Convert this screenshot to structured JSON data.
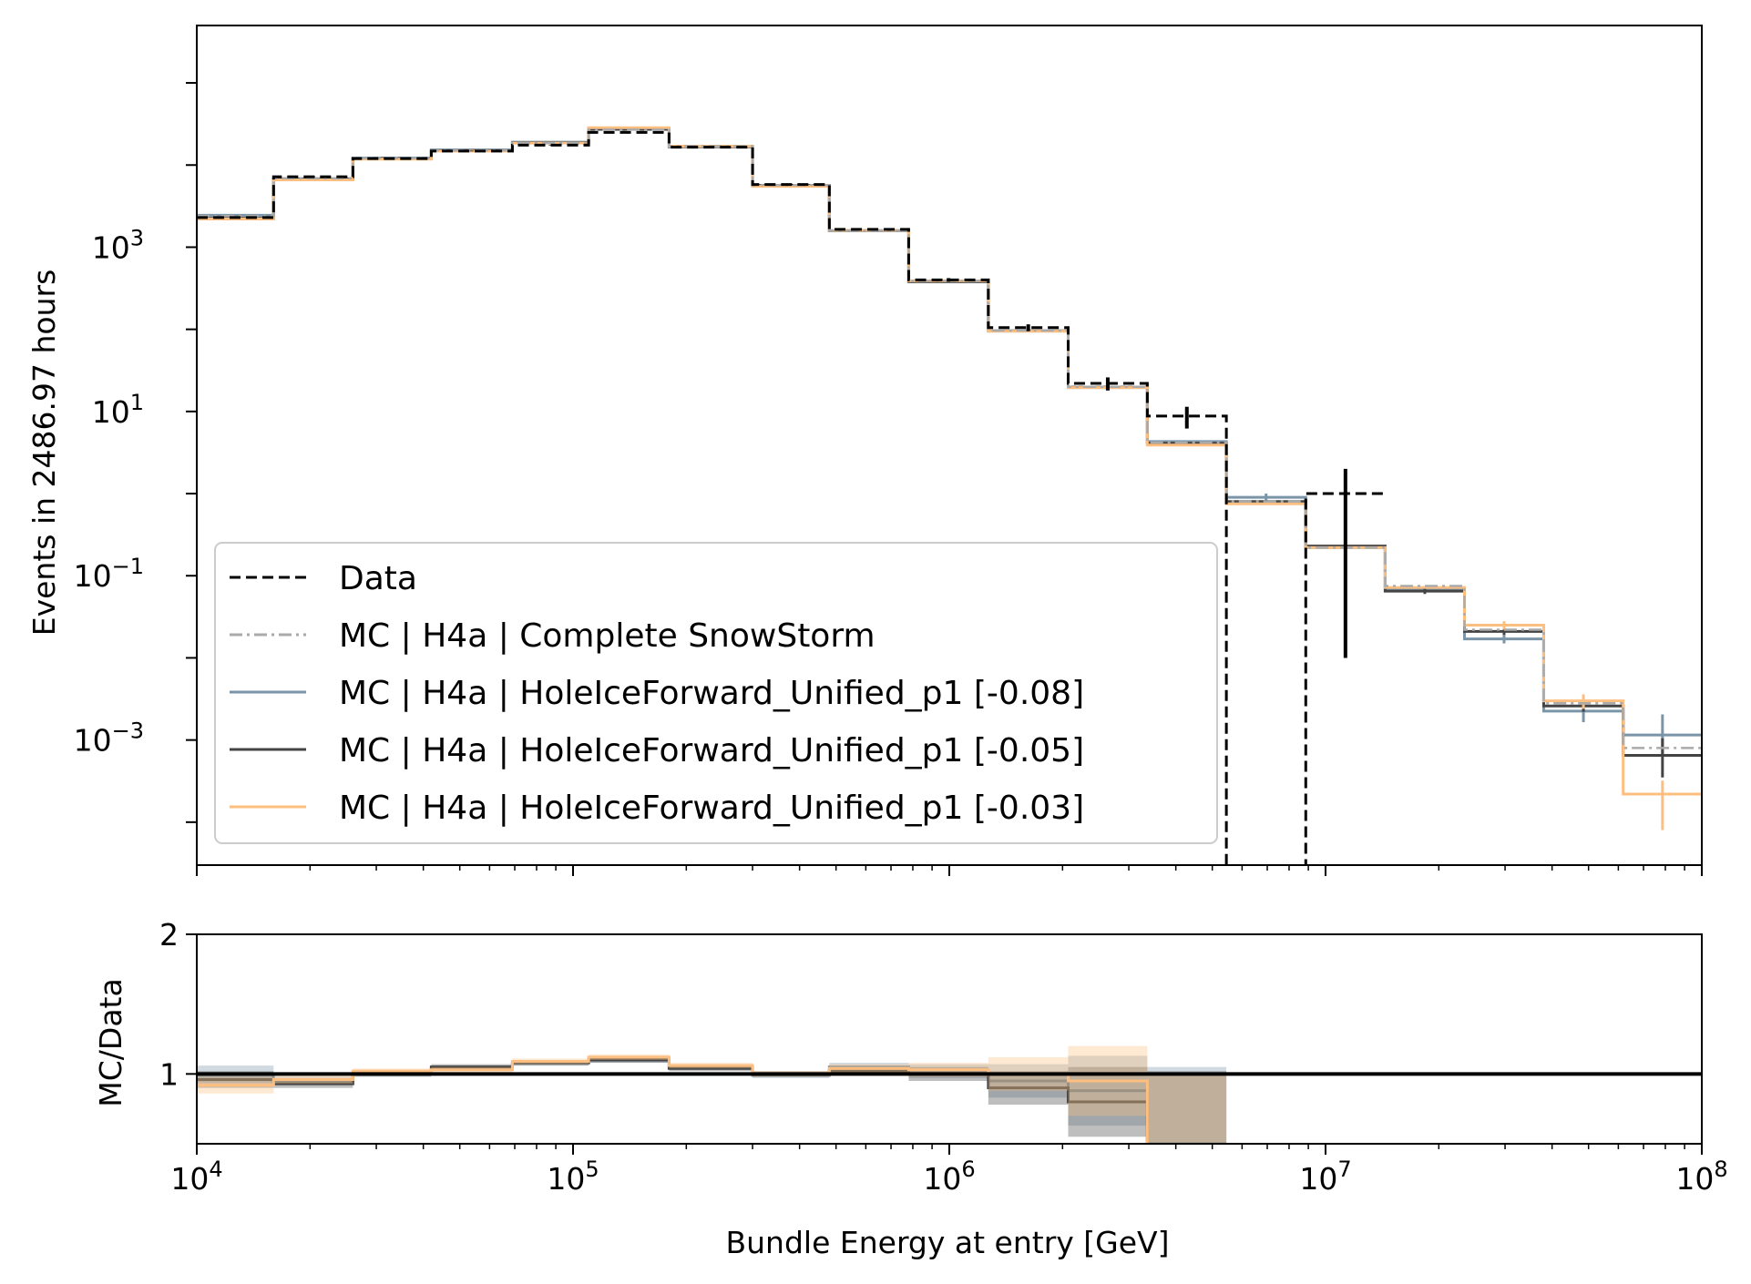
{
  "chart_data": [
    {
      "type": "line",
      "panel": "main",
      "xlabel": "",
      "ylabel": "Events in 2486.97 hours",
      "xscale": "log",
      "yscale": "log",
      "xlim": [
        10000,
        100000000
      ],
      "ylim": [
        3e-05,
        500000
      ],
      "y_ticks": [
        {
          "base": "10",
          "exp": "3",
          "value": 1000
        },
        {
          "base": "10",
          "exp": "1",
          "value": 10
        },
        {
          "base": "10",
          "exp": "−1",
          "value": 0.1
        },
        {
          "base": "10",
          "exp": "−3",
          "value": 0.001
        }
      ],
      "bin_edges": [
        10000,
        16000,
        26000,
        42000,
        69000,
        110000,
        180000,
        300000,
        480000,
        780000,
        1270000,
        2070000,
        3360000,
        5450000,
        8860000,
        14400000,
        23400000,
        38000000,
        61800000,
        100000000
      ],
      "legend_position": "lower-left",
      "series": [
        {
          "name": "Data",
          "color": "#000000",
          "style": "dashed",
          "values": [
            2300,
            7200,
            12000,
            14800,
            17500,
            25000,
            16500,
            5800,
            1650,
            400,
            105,
            22,
            8.8,
            1e-05,
            1.0
          ],
          "errors_lo": [
            60,
            90,
            110,
            120,
            130,
            160,
            130,
            80,
            40,
            20,
            10,
            4,
            2.6,
            0,
            0.99
          ],
          "errors_hi": [
            60,
            90,
            110,
            120,
            130,
            160,
            130,
            80,
            40,
            20,
            10,
            4,
            2.6,
            0,
            1.0
          ]
        },
        {
          "name": "MC | H4a | Complete SnowStorm",
          "color": "#aaaaaa",
          "style": "dashdot",
          "values": [
            2400,
            6900,
            12100,
            15100,
            18500,
            27000,
            17000,
            5700,
            1600,
            390,
            97,
            20,
            4.2,
            0.8,
            0.22,
            0.075,
            0.022,
            0.0028,
            0.0008
          ],
          "errors_lo": [],
          "errors_hi": []
        },
        {
          "name": "MC | H4a | HoleIceForward_Unified_p1 [-0.08]",
          "color": "#7a94a8",
          "style": "solid",
          "values": [
            2450,
            6800,
            12200,
            15300,
            19000,
            27500,
            16800,
            5600,
            1580,
            385,
            95,
            19.5,
            4.3,
            0.9,
            0.22,
            0.068,
            0.017,
            0.00225,
            0.00115
          ],
          "errors_lo": [
            0,
            0,
            0,
            0,
            0,
            0,
            0,
            0,
            0,
            0,
            0,
            0,
            0,
            0.1,
            0,
            0,
            0.002,
            0.0006,
            0.0005
          ],
          "errors_hi": [
            0,
            0,
            0,
            0,
            0,
            0,
            0,
            0,
            0,
            0,
            0,
            0,
            0,
            0.1,
            0,
            0,
            0.002,
            0.0006,
            0.0009
          ]
        },
        {
          "name": "MC | H4a | HoleIceForward_Unified_p1 [-0.05]",
          "color": "#444444",
          "style": "solid",
          "values": [
            2250,
            6700,
            12000,
            15000,
            18700,
            27200,
            16700,
            5650,
            1600,
            380,
            96,
            19.8,
            4.1,
            0.8,
            0.23,
            0.065,
            0.021,
            0.0026,
            0.00065
          ],
          "errors_lo": [
            0,
            0,
            0,
            0,
            0,
            0,
            0,
            0,
            0,
            0,
            0,
            0,
            0,
            0,
            0,
            0.005,
            0.002,
            0.0004,
            0.0003
          ],
          "errors_hi": [
            0,
            0,
            0,
            0,
            0,
            0,
            0,
            0,
            0,
            0,
            0,
            0,
            0,
            0,
            0,
            0.005,
            0.002,
            0.0004,
            0.0004
          ]
        },
        {
          "name": "MC | H4a | HoleIceForward_Unified_p1 [-0.03]",
          "color": "#fdbf80",
          "style": "solid",
          "values": [
            2200,
            6600,
            11800,
            14800,
            18500,
            28500,
            17000,
            5500,
            1600,
            390,
            95,
            19.5,
            3.9,
            0.75,
            0.22,
            0.072,
            0.025,
            0.003,
            0.00022
          ],
          "errors_lo": [
            0,
            0,
            0,
            0,
            0,
            0,
            0,
            0,
            0,
            0,
            0,
            0,
            0,
            0,
            0,
            0,
            0.003,
            0.0006,
            0.00014
          ],
          "errors_hi": [
            0,
            0,
            0,
            0,
            0,
            0,
            0,
            0,
            0,
            0,
            0,
            0,
            0,
            0,
            0,
            0,
            0.003,
            0.0006,
            0.0001
          ]
        }
      ]
    },
    {
      "type": "line",
      "panel": "ratio",
      "xlabel": "Bundle Energy at entry [GeV]",
      "ylabel": "MC/Data",
      "xscale": "log",
      "xlim": [
        10000,
        100000000
      ],
      "ylim": [
        0.5,
        2
      ],
      "x_ticks": [
        {
          "base": "10",
          "exp": "4",
          "value": 10000
        },
        {
          "base": "10",
          "exp": "5",
          "value": 100000
        },
        {
          "base": "10",
          "exp": "6",
          "value": 1000000
        },
        {
          "base": "10",
          "exp": "7",
          "value": 10000000
        },
        {
          "base": "10",
          "exp": "8",
          "value": 100000000
        }
      ],
      "y_ticks": [
        {
          "label": "1",
          "value": 1
        },
        {
          "label": "2",
          "value": 2
        }
      ],
      "reference_line": 1,
      "bin_edges": [
        10000,
        16000,
        26000,
        42000,
        69000,
        110000,
        180000,
        300000,
        480000,
        780000,
        1270000,
        2070000,
        3360000,
        5450000
      ],
      "series": [
        {
          "name": "MC | H4a | HoleIceForward_Unified_p1 [-0.08]",
          "color": "#7a94a8",
          "values": [
            1.0,
            0.95,
            1.01,
            1.04,
            1.08,
            1.1,
            1.05,
            0.99,
            1.05,
            1.02,
            0.95,
            0.88,
            0.5
          ],
          "band": [
            0.06,
            0.03,
            0.02,
            0.02,
            0.02,
            0.02,
            0.02,
            0.02,
            0.03,
            0.05,
            0.12,
            0.25,
            0.55
          ]
        },
        {
          "name": "MC | H4a | HoleIceForward_Unified_p1 [-0.05]",
          "color": "#444444",
          "values": [
            0.96,
            0.93,
            1.0,
            1.05,
            1.08,
            1.1,
            1.04,
            1.0,
            1.02,
            1.0,
            0.9,
            0.8,
            0.47
          ],
          "band": [
            0.06,
            0.03,
            0.02,
            0.02,
            0.02,
            0.02,
            0.02,
            0.02,
            0.03,
            0.05,
            0.12,
            0.25,
            0.55
          ]
        },
        {
          "name": "MC | H4a | HoleIceForward_Unified_p1 [-0.03]",
          "color": "#fdbf80",
          "values": [
            0.92,
            0.96,
            1.02,
            1.03,
            1.09,
            1.12,
            1.06,
            1.0,
            1.04,
            1.03,
            1.0,
            0.95,
            0.44
          ],
          "band": [
            0.06,
            0.03,
            0.02,
            0.02,
            0.02,
            0.02,
            0.02,
            0.02,
            0.03,
            0.05,
            0.12,
            0.25,
            0.55
          ]
        }
      ]
    }
  ]
}
